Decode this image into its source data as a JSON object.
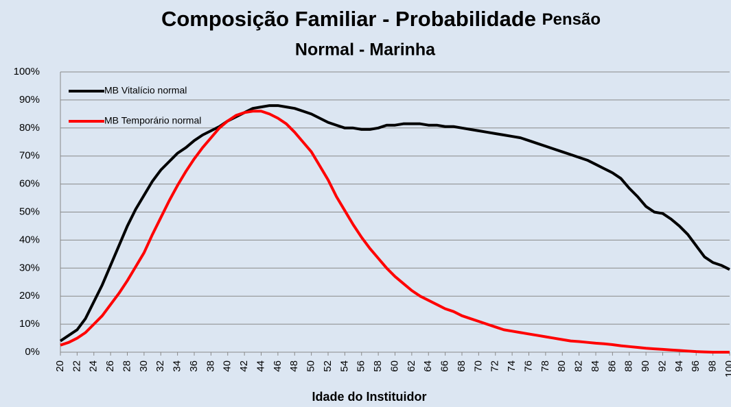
{
  "chart_data": {
    "type": "line",
    "title": [
      "Composição Familiar - Probabilidade",
      "Pensão",
      "Normal - Marinha"
    ],
    "x_label": "Idade do Instituidor",
    "x": [
      20,
      21,
      22,
      23,
      24,
      25,
      26,
      27,
      28,
      29,
      30,
      31,
      32,
      33,
      34,
      35,
      36,
      37,
      38,
      39,
      40,
      41,
      42,
      43,
      44,
      45,
      46,
      47,
      48,
      49,
      50,
      51,
      52,
      53,
      54,
      55,
      56,
      57,
      58,
      59,
      60,
      61,
      62,
      63,
      64,
      65,
      66,
      67,
      68,
      69,
      70,
      71,
      72,
      73,
      74,
      75,
      76,
      77,
      78,
      79,
      80,
      81,
      82,
      83,
      84,
      85,
      86,
      87,
      88,
      89,
      90,
      91,
      92,
      93,
      94,
      95,
      96,
      97,
      98,
      99,
      100
    ],
    "xlim": [
      20,
      100
    ],
    "xticks": [
      20,
      22,
      24,
      26,
      28,
      30,
      32,
      34,
      36,
      38,
      40,
      42,
      44,
      46,
      48,
      50,
      52,
      54,
      56,
      58,
      60,
      62,
      64,
      66,
      68,
      70,
      72,
      74,
      76,
      78,
      80,
      82,
      84,
      86,
      88,
      90,
      92,
      94,
      96,
      98,
      100
    ],
    "ylim": [
      0,
      100
    ],
    "yticks": [
      {
        "value": 0,
        "label": "0%"
      },
      {
        "value": 10,
        "label": "10%"
      },
      {
        "value": 20,
        "label": "20%"
      },
      {
        "value": 30,
        "label": "30%"
      },
      {
        "value": 40,
        "label": "40%"
      },
      {
        "value": 50,
        "label": "50%"
      },
      {
        "value": 60,
        "label": "60%"
      },
      {
        "value": 70,
        "label": "70%"
      },
      {
        "value": 80,
        "label": "80%"
      },
      {
        "value": 90,
        "label": "90%"
      },
      {
        "value": 100,
        "label": "100%"
      }
    ],
    "grid": true,
    "legend": "upper left",
    "series": [
      {
        "name": "MB Vitalício normal",
        "color": "#000000",
        "values": [
          4,
          6,
          8,
          12,
          18,
          24,
          31,
          38,
          45,
          51,
          56,
          61,
          65,
          68,
          71,
          73,
          75.5,
          77.5,
          79,
          80.5,
          82.5,
          84,
          85.5,
          87,
          87.5,
          88,
          88,
          87.5,
          87,
          86,
          85,
          83.5,
          82,
          81,
          80,
          80,
          79.5,
          79.5,
          80,
          81,
          81,
          81.5,
          81.5,
          81.5,
          81,
          81,
          80.5,
          80.5,
          80,
          79.5,
          79,
          78.5,
          78,
          77.5,
          77,
          76.5,
          75.5,
          74.5,
          73.5,
          72.5,
          71.5,
          70.5,
          69.5,
          68.5,
          67,
          65.5,
          64,
          62,
          58.5,
          55.5,
          52,
          50,
          49.5,
          47.5,
          45,
          42,
          38,
          34,
          32,
          31,
          29.5
        ]
      },
      {
        "name": "MB Temporário normal",
        "color": "#ff0000",
        "values": [
          2.5,
          3.5,
          5,
          7,
          10,
          13,
          17,
          21,
          25.5,
          30.5,
          35.5,
          42,
          48,
          54,
          59.5,
          64.5,
          69,
          73,
          76.5,
          80,
          82.5,
          84.5,
          85.5,
          86,
          86,
          85,
          83.5,
          81.5,
          78.5,
          75,
          71.5,
          66.5,
          61.5,
          55.5,
          50.5,
          45.5,
          41,
          37,
          33.5,
          30,
          27,
          24.5,
          22,
          20,
          18.5,
          17,
          15.5,
          14.5,
          13,
          12,
          11,
          10,
          9,
          8,
          7.5,
          7,
          6.5,
          6,
          5.5,
          5,
          4.5,
          4,
          3.8,
          3.5,
          3.2,
          3,
          2.7,
          2.3,
          2,
          1.7,
          1.4,
          1.2,
          1,
          0.8,
          0.6,
          0.4,
          0.2,
          0.1,
          0,
          0,
          0
        ]
      }
    ]
  }
}
